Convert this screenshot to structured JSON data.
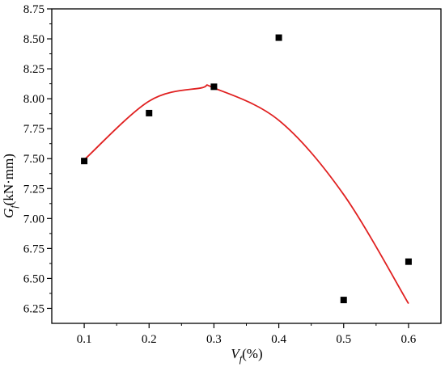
{
  "chart_data": {
    "type": "scatter",
    "title": "",
    "xlabel": {
      "symbol": "V",
      "subscript": "f",
      "unit": "(%)"
    },
    "ylabel": {
      "symbol": "G",
      "subscript": "f",
      "unit": "(kN·mm)"
    },
    "xlim": [
      0.05,
      0.65
    ],
    "ylim": [
      6.125,
      8.75
    ],
    "xticks": [
      "0.1",
      "0.2",
      "0.3",
      "0.4",
      "0.5",
      "0.6"
    ],
    "yticks": [
      "6.25",
      "6.50",
      "6.75",
      "7.00",
      "7.25",
      "7.50",
      "7.75",
      "8.00",
      "8.25",
      "8.50",
      "8.75"
    ],
    "grid": false,
    "legend": "none",
    "series": [
      {
        "kind": "points",
        "marker": "square",
        "color": "#000000",
        "x": [
          0.1,
          0.2,
          0.3,
          0.4,
          0.5,
          0.6
        ],
        "y": [
          7.48,
          7.88,
          8.1,
          8.51,
          6.32,
          6.64
        ]
      },
      {
        "kind": "fit-curve",
        "color": "#e02020",
        "x": [
          0.1,
          0.2,
          0.28,
          0.3,
          0.4,
          0.5,
          0.6
        ],
        "y": [
          7.49,
          7.98,
          8.09,
          8.09,
          7.82,
          7.2,
          6.29
        ]
      }
    ]
  }
}
